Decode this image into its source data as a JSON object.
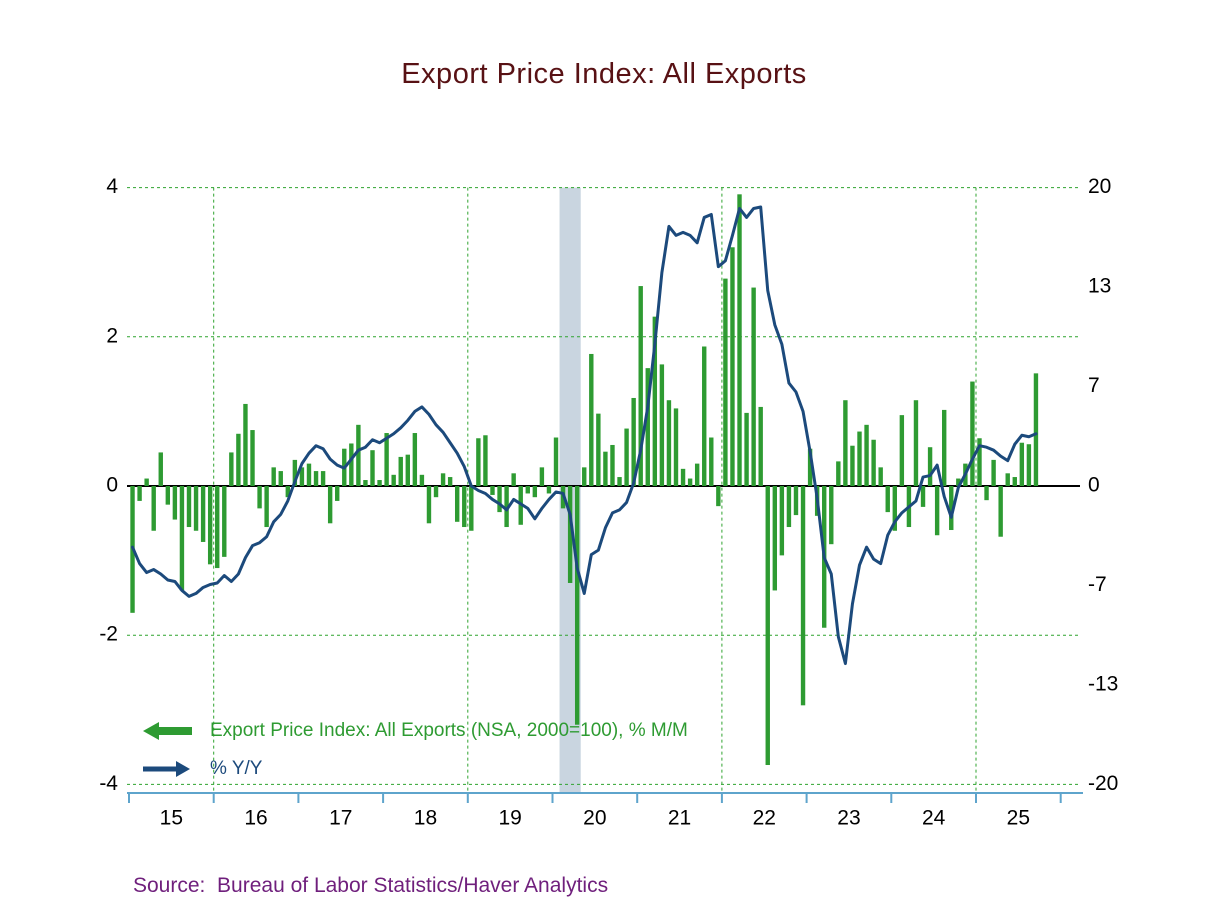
{
  "title": "Export Price Index: All Exports",
  "legend": {
    "series1_label": "Export Price Index: All Exports (NSA, 2000=100), % M/M",
    "series2_label": "% Y/Y"
  },
  "source_line": "Source:  Bureau of Labor Statistics/Haver Analytics",
  "colors": {
    "title": "#581114",
    "bar": "#2e9b32",
    "line": "#1c4a7c",
    "grid": "#2fa32f",
    "band": "#c9d5e0",
    "axis": "#5ea4cc",
    "source": "#6f1f7c",
    "tick_label": "#000000"
  },
  "chart_data": {
    "type": "bar+line",
    "title": "Export Price Index: All Exports",
    "x_start": "2015-01",
    "x_end": "2025-09",
    "months_per_year": 12,
    "x_tick_labels": [
      "15",
      "16",
      "17",
      "18",
      "19",
      "20",
      "21",
      "22",
      "23",
      "24",
      "25"
    ],
    "left_axis": {
      "label": "% M/M",
      "range": [
        -4,
        4
      ],
      "ticks": [
        "4",
        "2",
        "0",
        "-2",
        "-4"
      ],
      "tick_values": [
        4,
        2,
        0,
        -2,
        -4
      ]
    },
    "right_axis": {
      "label": "% Y/Y",
      "range": [
        -20,
        20
      ],
      "ticks": [
        "20",
        "13",
        "7",
        "0",
        "-7",
        "-13",
        "-20"
      ],
      "tick_values": [
        20,
        13.33,
        6.67,
        0,
        -6.67,
        -13.33,
        -20
      ]
    },
    "gridlines": {
      "horizontal_left_values": [
        4,
        2,
        -2,
        -4
      ],
      "vertical_year_labels": [
        "16",
        "19",
        "22",
        "25"
      ],
      "style": "dashed-green"
    },
    "recession_band": {
      "start": "2020-02",
      "end": "2020-04"
    },
    "legend_position": "bottom-left-inside",
    "series": [
      {
        "name": "Export Price Index: All Exports (NSA, 2000=100), % M/M",
        "type": "bar",
        "axis": "left",
        "color": "#2e9b32",
        "values": [
          -1.7,
          -0.2,
          0.1,
          -0.6,
          0.45,
          -0.25,
          -0.45,
          -1.4,
          -0.55,
          -0.6,
          -0.75,
          -1.05,
          -1.1,
          -0.95,
          0.45,
          0.7,
          1.1,
          0.75,
          -0.3,
          -0.55,
          0.25,
          0.2,
          -0.15,
          0.35,
          0.25,
          0.3,
          0.2,
          0.2,
          -0.5,
          -0.2,
          0.5,
          0.57,
          0.82,
          0.08,
          0.48,
          0.08,
          0.71,
          0.15,
          0.39,
          0.42,
          0.71,
          0.15,
          -0.5,
          -0.15,
          0.17,
          0.12,
          -0.48,
          -0.55,
          -0.6,
          0.64,
          0.68,
          -0.12,
          -0.35,
          -0.55,
          0.17,
          -0.52,
          -0.1,
          -0.15,
          0.25,
          -0.1,
          0.65,
          -0.3,
          -1.3,
          -3.2,
          0.25,
          1.77,
          0.97,
          0.46,
          0.55,
          0.12,
          0.77,
          1.18,
          2.68,
          1.58,
          2.27,
          1.63,
          1.15,
          1.04,
          0.23,
          0.1,
          0.3,
          1.87,
          0.65,
          -0.27,
          2.78,
          3.2,
          3.91,
          0.98,
          2.66,
          1.06,
          -3.74,
          -1.4,
          -0.93,
          -0.55,
          -0.39,
          -2.94,
          0.5,
          -0.4,
          -1.9,
          -0.78,
          0.33,
          1.15,
          0.54,
          0.73,
          0.82,
          0.62,
          0.25,
          -0.35,
          -0.6,
          0.95,
          -0.55,
          1.15,
          -0.28,
          0.52,
          -0.66,
          1.02,
          -0.59,
          0.1,
          0.3,
          1.4,
          0.64,
          -0.19,
          0.35,
          -0.68,
          0.17,
          0.12,
          0.58,
          0.56,
          1.51
        ]
      },
      {
        "name": "% Y/Y",
        "type": "line",
        "axis": "right",
        "color": "#1c4a7c",
        "values": [
          -4.1,
          -5.2,
          -5.8,
          -5.6,
          -5.9,
          -6.3,
          -6.4,
          -7.0,
          -7.4,
          -7.2,
          -6.8,
          -6.6,
          -6.5,
          -6.0,
          -6.4,
          -5.9,
          -4.8,
          -4.0,
          -3.8,
          -3.4,
          -2.4,
          -1.9,
          -1.0,
          0.3,
          1.5,
          2.2,
          2.7,
          2.5,
          1.8,
          1.4,
          1.2,
          1.8,
          2.4,
          2.6,
          3.1,
          2.9,
          3.2,
          3.5,
          3.9,
          4.4,
          5.0,
          5.3,
          4.8,
          4.1,
          3.6,
          2.9,
          2.2,
          1.3,
          0.0,
          -0.3,
          -0.5,
          -0.9,
          -1.2,
          -1.6,
          -0.9,
          -1.2,
          -1.5,
          -2.2,
          -1.5,
          -0.9,
          -0.4,
          -0.5,
          -1.9,
          -5.5,
          -7.2,
          -4.6,
          -4.3,
          -2.8,
          -1.8,
          -1.6,
          -1.1,
          0.2,
          2.4,
          5.3,
          9.5,
          14.3,
          17.4,
          16.8,
          17.0,
          16.8,
          16.3,
          18.0,
          18.2,
          14.7,
          15.1,
          16.8,
          18.6,
          18.0,
          18.6,
          18.7,
          13.1,
          10.8,
          9.5,
          6.9,
          6.3,
          5.0,
          2.3,
          -0.8,
          -4.8,
          -5.9,
          -10.1,
          -11.9,
          -7.9,
          -5.3,
          -4.1,
          -4.9,
          -5.2,
          -3.3,
          -2.4,
          -1.8,
          -1.4,
          -1.0,
          0.6,
          0.7,
          1.4,
          -0.7,
          -2.1,
          -0.1,
          0.8,
          1.8,
          2.7,
          2.6,
          2.4,
          2.0,
          1.7,
          2.8,
          3.4,
          3.3,
          3.5
        ]
      }
    ]
  }
}
